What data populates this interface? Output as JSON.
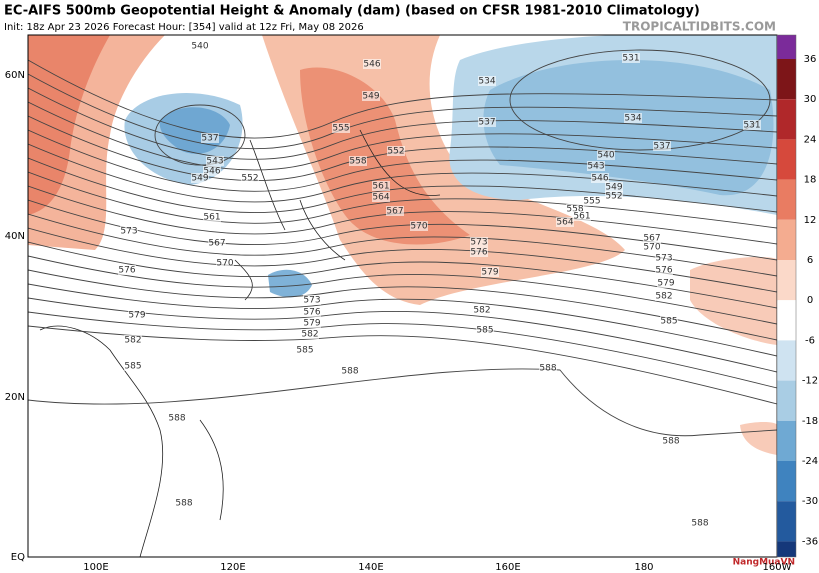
{
  "header": {
    "title": "EC-AIFS 500mb Geopotential Height & Anomaly (dam) (based on CFSR 1981-2010 Climatology)",
    "subtitle": "Init: 18z Apr 23 2026   Forecast Hour: [354]   valid at 12z Fri, May 08 2026",
    "watermark": "TROPICALTIDBITS.COM",
    "logo": "NangMuaVN"
  },
  "map": {
    "lon_labels": [
      "100E",
      "120E",
      "140E",
      "160E",
      "180",
      "160W"
    ],
    "lat_labels": [
      "60N",
      "40N",
      "20N",
      "EQ"
    ],
    "contour_labels": [
      "540",
      "546",
      "549",
      "534",
      "531",
      "537",
      "534",
      "531",
      "537",
      "540",
      "543",
      "546",
      "549",
      "552",
      "555",
      "558",
      "561",
      "564",
      "567",
      "570",
      "573",
      "576",
      "579",
      "582",
      "585",
      "588",
      "588",
      "588",
      "537",
      "543",
      "546",
      "549",
      "552",
      "555",
      "552",
      "558",
      "561",
      "564",
      "567",
      "570",
      "573",
      "576",
      "579",
      "582",
      "585",
      "561",
      "567",
      "570",
      "573",
      "576",
      "579",
      "582",
      "585",
      "588",
      "588",
      "588",
      "585",
      "582",
      "579",
      "576",
      "573"
    ]
  },
  "colorbar": {
    "labels": [
      36,
      30,
      24,
      18,
      12,
      6,
      0,
      -6,
      -12,
      -18,
      -24,
      -30,
      -36
    ]
  }
}
